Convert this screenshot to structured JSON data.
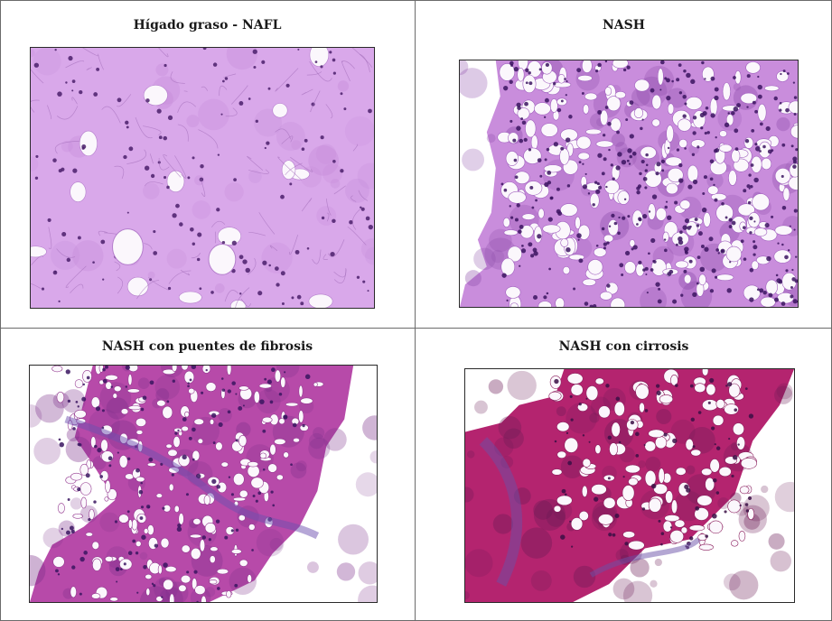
{
  "panels": [
    {
      "title": "Hígado graso - NAFL",
      "image": "micrograph-nafl",
      "stain_color": "#c98be0"
    },
    {
      "title": "NASH",
      "image": "micrograph-nash",
      "stain_color": "#c27fd6"
    },
    {
      "title": "NASH con puentes de fibrosis",
      "image": "micrograph-nash-fibrosis",
      "stain_color": "#b03fa8"
    },
    {
      "title": "NASH con cirrosis",
      "image": "micrograph-nash-cirrosis",
      "stain_color": "#b3266b"
    }
  ]
}
